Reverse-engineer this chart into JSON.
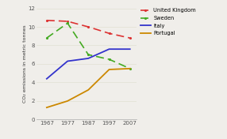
{
  "years": [
    1967,
    1977,
    1987,
    1997,
    2007
  ],
  "uk": [
    10.7,
    10.6,
    10.0,
    9.3,
    8.8
  ],
  "sweden": [
    8.8,
    10.4,
    7.0,
    6.5,
    5.5
  ],
  "italy": [
    4.4,
    6.3,
    6.6,
    7.6,
    7.6
  ],
  "portugal": [
    1.3,
    2.0,
    3.2,
    5.4,
    5.5
  ],
  "uk_color": "#dd3333",
  "sweden_color": "#44aa22",
  "italy_color": "#3333cc",
  "portugal_color": "#cc8800",
  "ylabel": "CO₂ emissions in metric tonnes",
  "xlim": [
    1962,
    2010
  ],
  "ylim": [
    0,
    12
  ],
  "yticks": [
    0,
    2,
    4,
    6,
    8,
    10,
    12
  ],
  "xticks": [
    1967,
    1977,
    1987,
    1997,
    2007
  ],
  "legend_labels": [
    "United Kingdom",
    "Sweden",
    "Italy",
    "Portugal"
  ],
  "bg_color": "#f0eeea"
}
